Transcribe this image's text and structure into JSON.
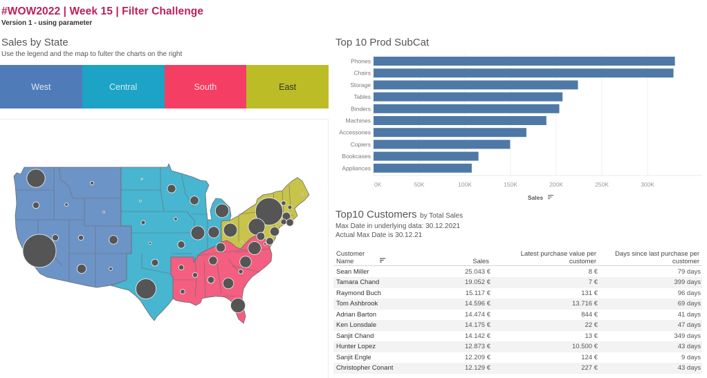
{
  "header": {
    "title": "#WOW2022 | Week 15 | Filter Challenge",
    "subtitle": "Version 1 - using parameter"
  },
  "map_section": {
    "title": "Sales by State",
    "instruction": "Use the legend and the map to fulter the charts on the right"
  },
  "legend": {
    "items": [
      {
        "label": "West",
        "color": "#4F7CB9",
        "map_color": "#6D94C7",
        "text_color": "#dfe8f3"
      },
      {
        "label": "Central",
        "color": "#1CA3C6",
        "map_color": "#48B5D1",
        "text_color": "#d7eef5"
      },
      {
        "label": "South",
        "color": "#F43E63",
        "map_color": "#F45E80",
        "text_color": "#fde0e6"
      },
      {
        "label": "East",
        "color": "#BCBC26",
        "map_color": "#C8C44B",
        "text_color": "#333333"
      }
    ]
  },
  "map": {
    "bubble_color": "#555555",
    "states": [
      {
        "state": "WA",
        "region": "West",
        "sales_k": 139
      },
      {
        "state": "OR",
        "region": "West",
        "sales_k": 17.4
      },
      {
        "state": "ID",
        "region": "West",
        "sales_k": 4.4
      },
      {
        "state": "MT",
        "region": "West",
        "sales_k": 5.6
      },
      {
        "state": "WY",
        "region": "West",
        "sales_k": 1.6
      },
      {
        "state": "CA",
        "region": "West",
        "sales_k": 458
      },
      {
        "state": "NV",
        "region": "West",
        "sales_k": 16.7
      },
      {
        "state": "UT",
        "region": "West",
        "sales_k": 11.2
      },
      {
        "state": "CO",
        "region": "West",
        "sales_k": 32.1
      },
      {
        "state": "AZ",
        "region": "West",
        "sales_k": 35.3
      },
      {
        "state": "NM",
        "region": "West",
        "sales_k": 4.8
      },
      {
        "state": "ND",
        "region": "Central",
        "sales_k": 0.9
      },
      {
        "state": "SD",
        "region": "Central",
        "sales_k": 1.3
      },
      {
        "state": "NE",
        "region": "Central",
        "sales_k": 7.5
      },
      {
        "state": "KS",
        "region": "Central",
        "sales_k": 2.9
      },
      {
        "state": "OK",
        "region": "Central",
        "sales_k": 19.7
      },
      {
        "state": "TX",
        "region": "Central",
        "sales_k": 170
      },
      {
        "state": "MN",
        "region": "Central",
        "sales_k": 29.9
      },
      {
        "state": "IA",
        "region": "Central",
        "sales_k": 4.6
      },
      {
        "state": "MO",
        "region": "Central",
        "sales_k": 22.2
      },
      {
        "state": "WI",
        "region": "Central",
        "sales_k": 32.1
      },
      {
        "state": "IL",
        "region": "Central",
        "sales_k": 80.2
      },
      {
        "state": "IN",
        "region": "Central",
        "sales_k": 53.6
      },
      {
        "state": "MI",
        "region": "Central",
        "sales_k": 76.3
      },
      {
        "state": "AR",
        "region": "South",
        "sales_k": 11.7
      },
      {
        "state": "LA",
        "region": "South",
        "sales_k": 9.2
      },
      {
        "state": "MS",
        "region": "South",
        "sales_k": 10.8
      },
      {
        "state": "AL",
        "region": "South",
        "sales_k": 19.5
      },
      {
        "state": "GA",
        "region": "South",
        "sales_k": 49.1
      },
      {
        "state": "FL",
        "region": "South",
        "sales_k": 89.5
      },
      {
        "state": "TN",
        "region": "South",
        "sales_k": 30.7
      },
      {
        "state": "KY",
        "region": "South",
        "sales_k": 36.6
      },
      {
        "state": "NC",
        "region": "South",
        "sales_k": 55.6
      },
      {
        "state": "SC",
        "region": "South",
        "sales_k": 8.5
      },
      {
        "state": "VA",
        "region": "South",
        "sales_k": 70.6
      },
      {
        "state": "NY",
        "region": "East",
        "sales_k": 311
      },
      {
        "state": "PA",
        "region": "East",
        "sales_k": 116.5
      },
      {
        "state": "OH",
        "region": "East",
        "sales_k": 78.3
      },
      {
        "state": "WV",
        "region": "East",
        "sales_k": 1.2
      },
      {
        "state": "NJ",
        "region": "East",
        "sales_k": 35.8
      },
      {
        "state": "DE",
        "region": "East",
        "sales_k": 27.5
      },
      {
        "state": "MD",
        "region": "East",
        "sales_k": 23.7
      },
      {
        "state": "DC",
        "region": "East",
        "sales_k": 2.9
      },
      {
        "state": "MA",
        "region": "East",
        "sales_k": 28.6
      },
      {
        "state": "CT",
        "region": "East",
        "sales_k": 13.4
      },
      {
        "state": "RI",
        "region": "East",
        "sales_k": 22.6
      },
      {
        "state": "VT",
        "region": "East",
        "sales_k": 8.9
      },
      {
        "state": "NH",
        "region": "East",
        "sales_k": 7.3
      },
      {
        "state": "ME",
        "region": "East",
        "sales_k": 1.3
      }
    ]
  },
  "subcat_section": {
    "title": "Top 10 Prod SubCat",
    "axis_title": "Sales"
  },
  "chart_data": {
    "type": "bar",
    "orientation": "horizontal",
    "title": "Top 10 Prod SubCat",
    "categories": [
      "Phones",
      "Chairs",
      "Storage",
      "Tables",
      "Binders",
      "Machines",
      "Accessories",
      "Copiers",
      "Bookcases",
      "Appliances"
    ],
    "values": [
      330007,
      328449,
      223844,
      206966,
      203413,
      189239,
      167380,
      149528,
      114880,
      107532
    ],
    "xlabel": "Sales",
    "ylabel": "",
    "xlim": [
      0,
      355000
    ],
    "xticks": [
      0,
      50000,
      100000,
      150000,
      200000,
      250000,
      300000
    ],
    "xtick_labels": [
      "0K",
      "50K",
      "100K",
      "150K",
      "200K",
      "250K",
      "300K"
    ],
    "bar_color": "#4E79A7",
    "grid": true,
    "sorted": "descending"
  },
  "customers": {
    "title": "Top10 Customers",
    "title_suffix": "by Total Sales",
    "max_date_line": "Max Date in underlying data: 30.12.2021",
    "actual_max_line": "Actual Max Date is 30.12.21",
    "columns": [
      {
        "line1": "Customer",
        "line2": "Name"
      },
      {
        "line1": "",
        "line2": "Sales"
      },
      {
        "line1": "Latest purchase value per",
        "line2": "customer"
      },
      {
        "line1": "Days since last purchase per",
        "line2": "customer"
      }
    ],
    "rows": [
      {
        "name": "Sean Miller",
        "sales": "25.043 €",
        "last_value": "8 €",
        "days": "79 days"
      },
      {
        "name": "Tamara Chand",
        "sales": "19.052 €",
        "last_value": "7 €",
        "days": "399 days"
      },
      {
        "name": "Raymond Buch",
        "sales": "15.117 €",
        "last_value": "131 €",
        "days": "96 days"
      },
      {
        "name": "Tom Ashbrook",
        "sales": "14.596 €",
        "last_value": "13.716 €",
        "days": "69 days"
      },
      {
        "name": "Adrian Barton",
        "sales": "14.474 €",
        "last_value": "844 €",
        "days": "41 days"
      },
      {
        "name": "Ken Lonsdale",
        "sales": "14.175 €",
        "last_value": "22 €",
        "days": "47 days"
      },
      {
        "name": "Sanjit Chand",
        "sales": "14.142 €",
        "last_value": "13 €",
        "days": "349 days"
      },
      {
        "name": "Hunter Lopez",
        "sales": "12.873 €",
        "last_value": "10.500 €",
        "days": "43 days"
      },
      {
        "name": "Sanjit Engle",
        "sales": "12.209 €",
        "last_value": "124 €",
        "days": "9 days"
      },
      {
        "name": "Christopher Conant",
        "sales": "12.129 €",
        "last_value": "227 €",
        "days": "43 days"
      }
    ]
  }
}
